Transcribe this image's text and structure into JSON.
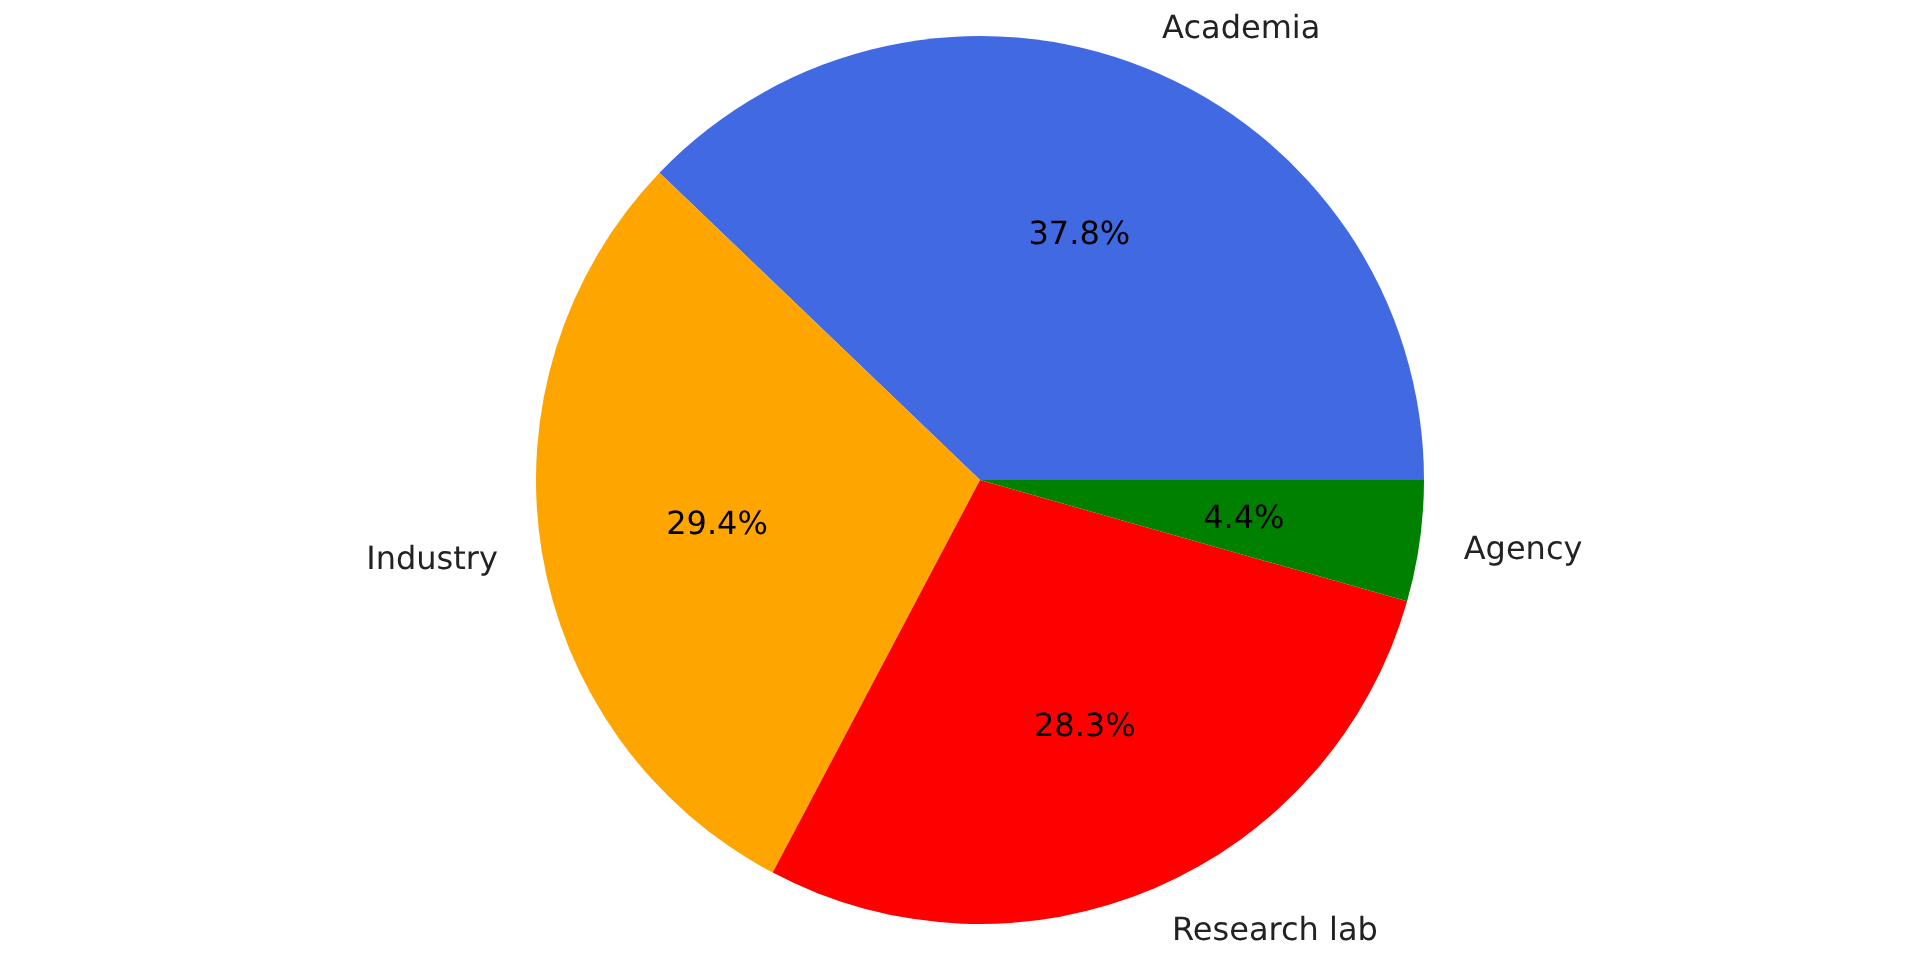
{
  "chart_data": {
    "type": "pie",
    "categories": [
      "Academia",
      "Industry",
      "Research lab",
      "Agency"
    ],
    "values": [
      37.8,
      29.4,
      28.3,
      4.4
    ],
    "value_labels": [
      "37.8%",
      "29.4%",
      "28.3%",
      "4.4%"
    ],
    "colors": [
      "#4169e1",
      "#ffa500",
      "#ff0000",
      "#008000"
    ]
  }
}
